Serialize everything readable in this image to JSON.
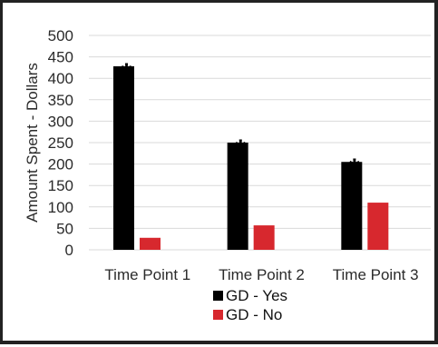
{
  "chart_data": {
    "type": "bar",
    "categories": [
      "Time Point 1",
      "Time Point 2",
      "Time Point 3"
    ],
    "series": [
      {
        "name": "GD - Yes",
        "values": [
          428,
          250,
          205
        ],
        "color": "#000000"
      },
      {
        "name": "GD - No",
        "values": [
          28,
          57,
          110
        ],
        "color": "#d7282e"
      }
    ],
    "ylabel": "Amount Spent - Dollars",
    "xlabel": "",
    "ylim": [
      0,
      500
    ],
    "yticks": [
      0,
      50,
      100,
      150,
      200,
      250,
      300,
      350,
      400,
      450,
      500
    ],
    "grid": true,
    "legend_position": "bottom",
    "annotations": [
      "*",
      "*",
      "*"
    ]
  }
}
